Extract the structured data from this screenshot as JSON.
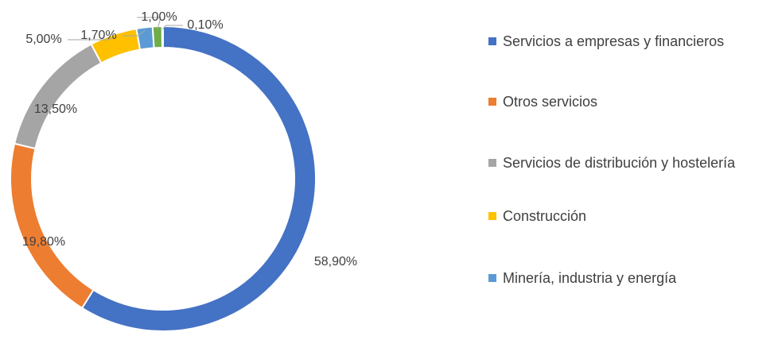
{
  "chart_data": {
    "type": "donut",
    "categories": [
      "Servicios a empresas y financieros",
      "Otros servicios",
      "Servicios de distribución y hostelería",
      "Construcción",
      "Minería, industria y energía",
      null,
      null
    ],
    "values": [
      58.9,
      19.8,
      13.5,
      5.0,
      1.7,
      1.0,
      0.1
    ],
    "value_labels": [
      "58,90%",
      "19,80%",
      "13,50%",
      "5,00%",
      "1,70%",
      "1,00%",
      "0,10%"
    ],
    "colors": [
      "#4472c4",
      "#ed7d31",
      "#a5a5a5",
      "#ffc000",
      "#5b9bd5",
      "#70ad47",
      "#264478"
    ],
    "legend": "right"
  }
}
